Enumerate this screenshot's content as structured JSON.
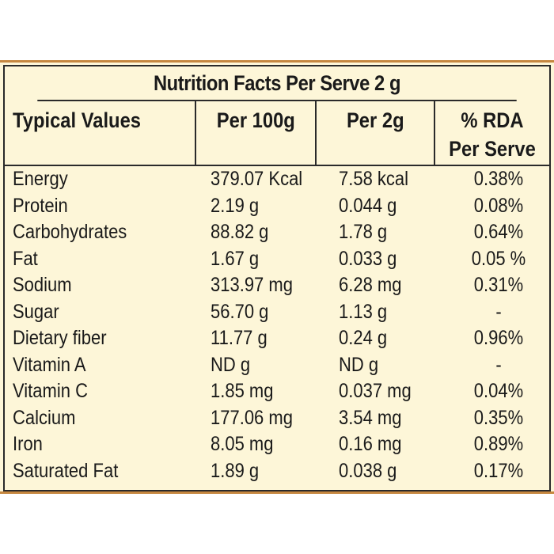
{
  "title": "Nutrition Facts Per Serve 2 g",
  "headers": {
    "name": "Typical Values",
    "per100": "Per 100g",
    "per2": "Per 2g",
    "rda_line1": "% RDA",
    "rda_line2": "Per Serve"
  },
  "rows": [
    {
      "name": "Energy",
      "per100": "379.07 Kcal",
      "per2": "7.58 kcal",
      "rda": "0.38%"
    },
    {
      "name": "Protein",
      "per100": "2.19 g",
      "per2": "0.044 g",
      "rda": "0.08%"
    },
    {
      "name": "Carbohydrates",
      "per100": "88.82 g",
      "per2": "1.78 g",
      "rda": "0.64%"
    },
    {
      "name": "Fat",
      "per100": "1.67 g",
      "per2": "0.033 g",
      "rda": "0.05 %"
    },
    {
      "name": "Sodium",
      "per100": "313.97 mg",
      "per2": "6.28 mg",
      "rda": "0.31%"
    },
    {
      "name": "Sugar",
      "per100": "56.70 g",
      "per2": "1.13 g",
      "rda": "-"
    },
    {
      "name": "Dietary fiber",
      "per100": "11.77 g",
      "per2": "0.24 g",
      "rda": "0.96%"
    },
    {
      "name": "Vitamin A",
      "per100": "ND g",
      "per2": "ND g",
      "rda": "-"
    },
    {
      "name": "Vitamin C",
      "per100": "1.85 mg",
      "per2": "0.037 mg",
      "rda": "0.04%"
    },
    {
      "name": "Calcium",
      "per100": "177.06 mg",
      "per2": "3.54 mg",
      "rda": "0.35%"
    },
    {
      "name": "Iron",
      "per100": "8.05 mg",
      "per2": "0.16 mg",
      "rda": "0.89%"
    },
    {
      "name": "Saturated Fat",
      "per100": "1.89 g",
      "per2": "0.038 g",
      "rda": "0.17%"
    }
  ],
  "colors": {
    "background": "#fdf6d8",
    "accent_border": "#c6873f",
    "rule": "#2a2a2a"
  }
}
